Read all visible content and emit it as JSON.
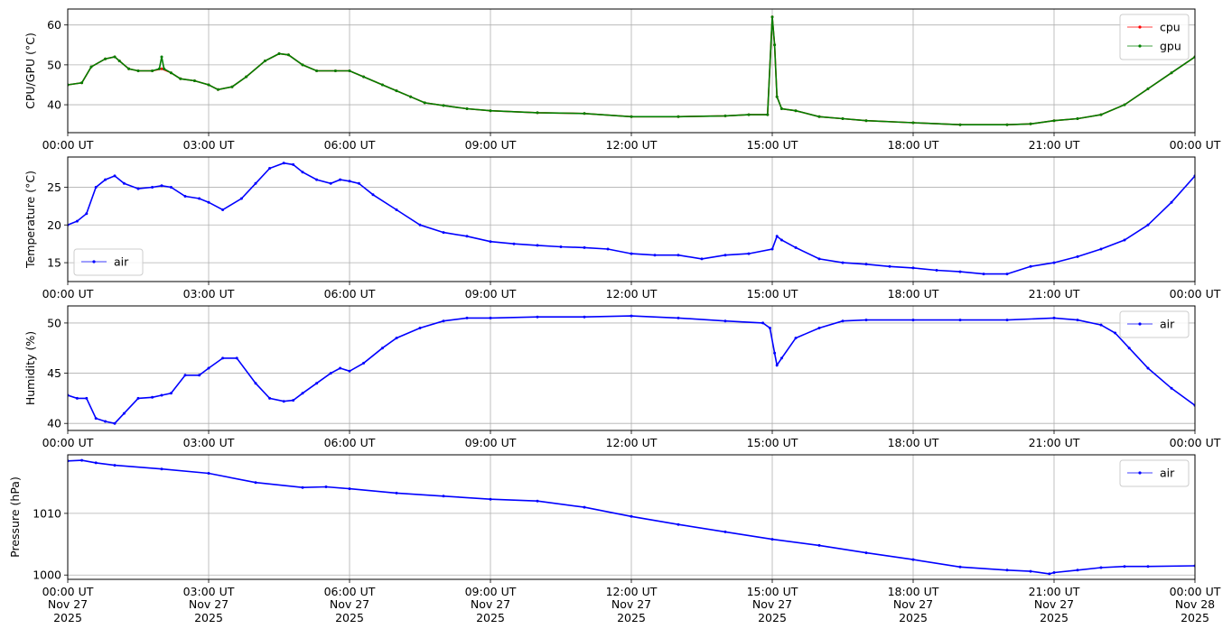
{
  "colors": {
    "cpu": "#ff0000",
    "gpu": "#008000",
    "air": "#0000ff",
    "grid": "#b0b0b0"
  },
  "x_ticks": [
    "00:00 UT",
    "03:00 UT",
    "06:00 UT",
    "09:00 UT",
    "12:00 UT",
    "15:00 UT",
    "18:00 UT",
    "21:00 UT",
    "00:00 UT"
  ],
  "x_date_lines": [
    [
      "Nov 27",
      "2025"
    ],
    [
      "Nov 27",
      "2025"
    ],
    [
      "Nov 27",
      "2025"
    ],
    [
      "Nov 27",
      "2025"
    ],
    [
      "Nov 27",
      "2025"
    ],
    [
      "Nov 27",
      "2025"
    ],
    [
      "Nov 27",
      "2025"
    ],
    [
      "Nov 27",
      "2025"
    ],
    [
      "Nov 28",
      "2025"
    ]
  ],
  "chart_data": [
    {
      "type": "line",
      "ylabel": "CPU/GPU (°C)",
      "xlim_hours": [
        0,
        24
      ],
      "ylim": [
        33,
        64
      ],
      "yticks": [
        40,
        50,
        60
      ],
      "grid": true,
      "legend": "top-right",
      "series": [
        {
          "name": "cpu",
          "color": "#ff0000",
          "x": [
            0,
            0.3,
            0.5,
            0.8,
            1.0,
            1.1,
            1.3,
            1.5,
            1.8,
            2.0,
            2.2,
            2.4,
            2.7,
            3.0,
            3.2,
            3.5,
            3.8,
            4.2,
            4.5,
            4.7,
            5.0,
            5.3,
            5.7,
            6.0,
            6.3,
            6.7,
            7.0,
            7.3,
            7.6,
            8.0,
            8.5,
            9.0,
            10.0,
            11.0,
            12.0,
            13.0,
            14.0,
            14.5,
            14.9,
            15.0,
            15.05,
            15.1,
            15.2,
            15.5,
            16.0,
            16.5,
            17.0,
            18.0,
            19.0,
            20.0,
            20.5,
            21.0,
            21.5,
            22.0,
            22.5,
            23.0,
            23.5,
            24.0
          ],
          "y": [
            45,
            45.5,
            49.5,
            51.5,
            52,
            51,
            49,
            48.5,
            48.5,
            49,
            48,
            46.5,
            46,
            45,
            43.8,
            44.5,
            47,
            51,
            52.8,
            52.5,
            50,
            48.5,
            48.5,
            48.5,
            47,
            45,
            43.5,
            42,
            40.5,
            39.8,
            39,
            38.5,
            38,
            37.8,
            37,
            37,
            37.2,
            37.5,
            37.5,
            62,
            55,
            42,
            39,
            38.5,
            37,
            36.5,
            36,
            35.5,
            35,
            35,
            35.2,
            36,
            36.5,
            37.5,
            40,
            44,
            48,
            52
          ]
        },
        {
          "name": "gpu",
          "color": "#008000",
          "x": [
            0,
            0.3,
            0.5,
            0.8,
            1.0,
            1.1,
            1.3,
            1.5,
            1.8,
            1.95,
            2.0,
            2.05,
            2.2,
            2.4,
            2.7,
            3.0,
            3.2,
            3.5,
            3.8,
            4.2,
            4.5,
            4.7,
            5.0,
            5.3,
            5.7,
            6.0,
            6.3,
            6.7,
            7.0,
            7.3,
            7.6,
            8.0,
            8.5,
            9.0,
            10.0,
            11.0,
            12.0,
            13.0,
            14.0,
            14.5,
            14.9,
            15.0,
            15.05,
            15.1,
            15.2,
            15.5,
            16.0,
            16.5,
            17.0,
            18.0,
            19.0,
            20.0,
            20.5,
            21.0,
            21.5,
            22.0,
            22.5,
            23.0,
            23.5,
            24.0
          ],
          "y": [
            45,
            45.5,
            49.5,
            51.5,
            52,
            51,
            49,
            48.5,
            48.5,
            49,
            52,
            49,
            48,
            46.5,
            46,
            45,
            43.8,
            44.5,
            47,
            51,
            52.8,
            52.5,
            50,
            48.5,
            48.5,
            48.5,
            47,
            45,
            43.5,
            42,
            40.5,
            39.8,
            39,
            38.5,
            38,
            37.8,
            37,
            37,
            37.2,
            37.5,
            37.5,
            62,
            55,
            42,
            39,
            38.5,
            37,
            36.5,
            36,
            35.5,
            35,
            35,
            35.2,
            36,
            36.5,
            37.5,
            40,
            44,
            48,
            52
          ]
        }
      ]
    },
    {
      "type": "line",
      "ylabel": "Temperature (°C)",
      "xlim_hours": [
        0,
        24
      ],
      "ylim": [
        12.5,
        29
      ],
      "yticks": [
        15,
        20,
        25
      ],
      "grid": true,
      "legend": "bottom-left",
      "series": [
        {
          "name": "air",
          "color": "#0000ff",
          "x": [
            0,
            0.2,
            0.4,
            0.6,
            0.8,
            1.0,
            1.2,
            1.5,
            1.8,
            2.0,
            2.2,
            2.5,
            2.8,
            3.0,
            3.3,
            3.7,
            4.0,
            4.3,
            4.6,
            4.8,
            5.0,
            5.3,
            5.6,
            5.8,
            6.0,
            6.2,
            6.5,
            7.0,
            7.5,
            8.0,
            8.5,
            9.0,
            9.5,
            10.0,
            10.5,
            11.0,
            11.5,
            12.0,
            12.5,
            13.0,
            13.5,
            14.0,
            14.5,
            15.0,
            15.1,
            15.2,
            15.5,
            16.0,
            16.5,
            17.0,
            17.5,
            18.0,
            18.5,
            19.0,
            19.5,
            20.0,
            20.5,
            21.0,
            21.5,
            22.0,
            22.5,
            23.0,
            23.5,
            24.0
          ],
          "y": [
            20,
            20.5,
            21.5,
            25,
            26,
            26.5,
            25.5,
            24.8,
            25,
            25.2,
            25,
            23.8,
            23.5,
            23,
            22,
            23.5,
            25.5,
            27.5,
            28.2,
            28,
            27,
            26,
            25.5,
            26,
            25.8,
            25.5,
            24,
            22,
            20,
            19,
            18.5,
            17.8,
            17.5,
            17.3,
            17.1,
            17,
            16.8,
            16.2,
            16,
            16,
            15.5,
            16,
            16.2,
            16.8,
            18.5,
            18,
            17,
            15.5,
            15,
            14.8,
            14.5,
            14.3,
            14,
            13.8,
            13.5,
            13.5,
            14.5,
            15,
            15.8,
            16.8,
            18,
            20,
            23,
            26.5
          ]
        }
      ]
    },
    {
      "type": "line",
      "ylabel": "Humidity (%)",
      "xlim_hours": [
        0,
        24
      ],
      "ylim": [
        39.3,
        51.7
      ],
      "yticks": [
        40,
        45,
        50
      ],
      "grid": true,
      "legend": "top-right",
      "series": [
        {
          "name": "air",
          "color": "#0000ff",
          "x": [
            0,
            0.2,
            0.4,
            0.6,
            0.8,
            1.0,
            1.2,
            1.5,
            1.8,
            2.0,
            2.2,
            2.5,
            2.8,
            3.0,
            3.3,
            3.6,
            4.0,
            4.3,
            4.6,
            4.8,
            5.0,
            5.3,
            5.6,
            5.8,
            6.0,
            6.3,
            6.7,
            7.0,
            7.5,
            8.0,
            8.5,
            9.0,
            10.0,
            11.0,
            12.0,
            13.0,
            14.0,
            14.8,
            14.95,
            15.05,
            15.1,
            15.2,
            15.5,
            16.0,
            16.5,
            17.0,
            18.0,
            19.0,
            20.0,
            21.0,
            21.5,
            22.0,
            22.3,
            22.6,
            23.0,
            23.5,
            24.0
          ],
          "y": [
            42.8,
            42.5,
            42.5,
            40.5,
            40.2,
            40,
            41,
            42.5,
            42.6,
            42.8,
            43,
            44.8,
            44.8,
            45.5,
            46.5,
            46.5,
            44,
            42.5,
            42.2,
            42.3,
            43,
            44,
            45,
            45.5,
            45.2,
            46,
            47.5,
            48.5,
            49.5,
            50.2,
            50.5,
            50.5,
            50.6,
            50.6,
            50.7,
            50.5,
            50.2,
            50,
            49.5,
            47,
            45.8,
            46.5,
            48.5,
            49.5,
            50.2,
            50.3,
            50.3,
            50.3,
            50.3,
            50.5,
            50.3,
            49.8,
            49,
            47.5,
            45.5,
            43.5,
            41.8
          ]
        }
      ]
    },
    {
      "type": "line",
      "ylabel": "Pressure (hPa)",
      "xlim_hours": [
        0,
        24
      ],
      "ylim": [
        999.3,
        1019.5
      ],
      "yticks": [
        1000,
        1010
      ],
      "grid": true,
      "legend": "top-right",
      "series": [
        {
          "name": "air",
          "color": "#0000ff",
          "x": [
            0,
            0.3,
            0.6,
            1,
            2,
            3,
            4,
            5,
            5.5,
            6,
            7,
            8,
            9,
            10,
            11,
            12,
            13,
            14,
            15,
            16,
            17,
            18,
            19,
            20,
            20.5,
            20.9,
            21,
            21.5,
            22,
            22.5,
            23,
            24
          ],
          "y": [
            1018.5,
            1018.6,
            1018.2,
            1017.8,
            1017.2,
            1016.5,
            1015,
            1014.2,
            1014.3,
            1014,
            1013.3,
            1012.8,
            1012.3,
            1012,
            1011,
            1009.5,
            1008.2,
            1007,
            1005.8,
            1004.8,
            1003.6,
            1002.5,
            1001.3,
            1000.8,
            1000.6,
            1000.2,
            1000.4,
            1000.8,
            1001.2,
            1001.4,
            1001.4,
            1001.5
          ]
        }
      ]
    }
  ]
}
